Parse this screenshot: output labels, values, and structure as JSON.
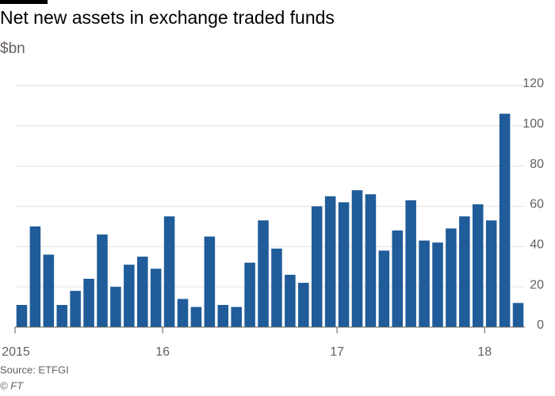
{
  "chart_data": {
    "type": "bar",
    "title": "Net new assets in exchange traded funds",
    "subtitle": "$bn",
    "source": "Source: ETFGI",
    "credit": "© FT",
    "categories": [
      "2015",
      null,
      null,
      null,
      null,
      null,
      null,
      null,
      null,
      null,
      null,
      "16",
      null,
      null,
      null,
      null,
      null,
      null,
      null,
      null,
      null,
      null,
      null,
      null,
      "17",
      null,
      null,
      null,
      null,
      null,
      null,
      null,
      null,
      null,
      null,
      "18",
      null,
      null
    ],
    "values": [
      11,
      50,
      36,
      11,
      18,
      24,
      46,
      20,
      31,
      35,
      29,
      55,
      14,
      10,
      45,
      11,
      10,
      32,
      53,
      39,
      26,
      22,
      60,
      65,
      62,
      68,
      66,
      38,
      48,
      63,
      43,
      42,
      49,
      55,
      61,
      53,
      106,
      12
    ],
    "color": "#1f5c99",
    "ylim": [
      0,
      120
    ],
    "yticks": [
      0,
      20,
      40,
      60,
      80,
      100,
      120
    ],
    "grid": true
  }
}
